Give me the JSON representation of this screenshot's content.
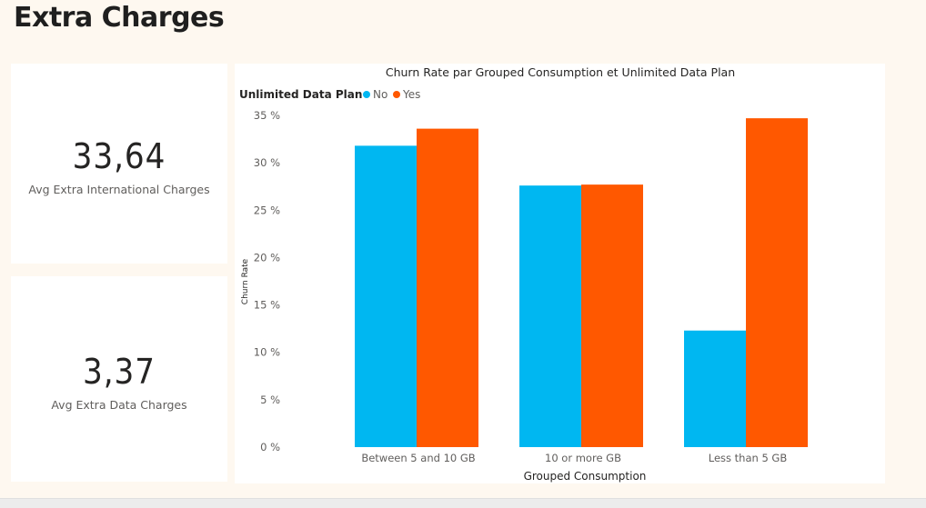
{
  "page": {
    "title": "Extra Charges"
  },
  "kpis": [
    {
      "value": "33,64",
      "label": "Avg Extra International Charges"
    },
    {
      "value": "3,37",
      "label": "Avg Extra Data Charges"
    }
  ],
  "chart_data": {
    "type": "bar",
    "title": "Churn Rate par Grouped Consumption et Unlimited Data Plan",
    "legend": {
      "title": "Unlimited Data Plan",
      "placement": "top-left"
    },
    "xlabel": "Grouped Consumption",
    "ylabel": "Churn Rate",
    "categories": [
      "Between 5 and 10 GB",
      "10 or more GB",
      "Less than 5 GB"
    ],
    "series": [
      {
        "name": "No",
        "color": "#00b7f1",
        "values": [
          31.8,
          27.6,
          12.3
        ]
      },
      {
        "name": "Yes",
        "color": "#ff5800",
        "values": [
          33.6,
          27.7,
          34.7
        ]
      }
    ],
    "ylim": [
      0,
      35
    ],
    "yticks": [
      0,
      5,
      10,
      15,
      20,
      25,
      30,
      35
    ],
    "ytick_labels": [
      "0 %",
      "5 %",
      "10 %",
      "15 %",
      "20 %",
      "25 %",
      "30 %",
      "35 %"
    ],
    "grid": false
  }
}
